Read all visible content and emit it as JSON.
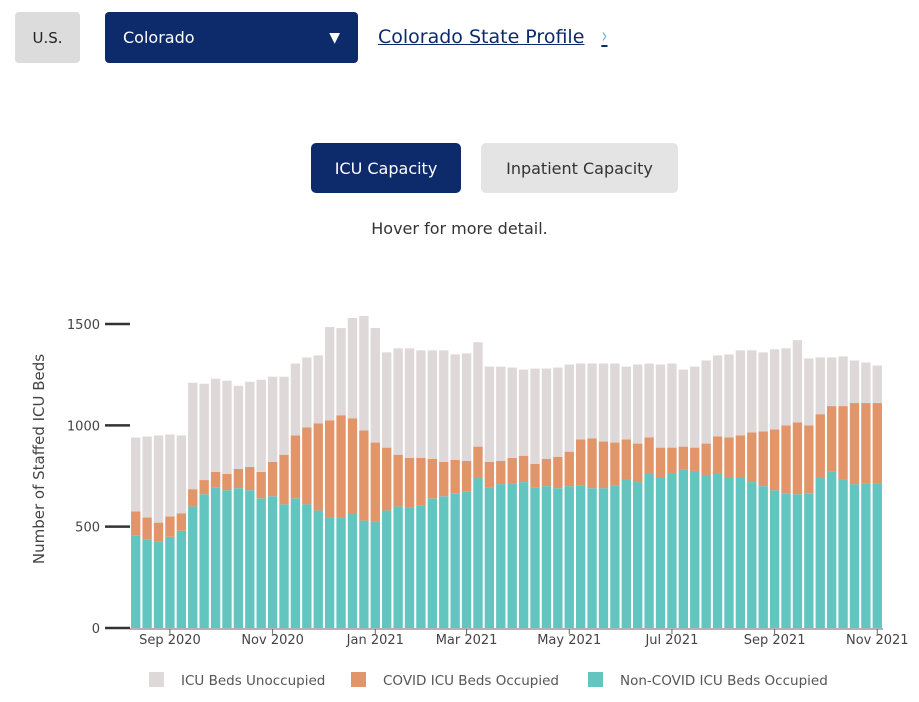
{
  "nav": {
    "us_label": "U.S.",
    "state_selected": "Colorado",
    "dropdown_caret": "▼",
    "profile_link": "Colorado State Profile",
    "profile_chevron": "›"
  },
  "tabs": [
    {
      "label": "ICU Capacity",
      "active": true
    },
    {
      "label": "Inpatient Capacity",
      "active": false
    }
  ],
  "hint": "Hover for more detail.",
  "colors": {
    "primary": "#0d2b6b",
    "unoccupied": "#ded8d8",
    "covid": "#e3956a",
    "noncovid": "#63c5c0"
  },
  "chart_data": {
    "type": "bar",
    "stacked": true,
    "ylabel": "Number of Staffed ICU Beds",
    "ylim": [
      0,
      1500
    ],
    "yticks": [
      0,
      500,
      1000,
      1500
    ],
    "xticks": [
      {
        "label": "Sep 2020",
        "index": 3
      },
      {
        "label": "Nov 2020",
        "index": 12
      },
      {
        "label": "Jan 2021",
        "index": 21
      },
      {
        "label": "Mar 2021",
        "index": 29
      },
      {
        "label": "May 2021",
        "index": 38
      },
      {
        "label": "Jul 2021",
        "index": 47
      },
      {
        "label": "Sep 2021",
        "index": 56
      },
      {
        "label": "Nov 2021",
        "index": 65
      }
    ],
    "legend": [
      "ICU Beds Unoccupied",
      "COVID ICU Beds Occupied",
      "Non-COVID ICU Beds Occupied"
    ],
    "series": [
      {
        "name": "Non-COVID ICU Beds Occupied",
        "color": "#63c5c0",
        "values": [
          455,
          435,
          425,
          450,
          480,
          600,
          660,
          695,
          680,
          690,
          680,
          640,
          650,
          610,
          640,
          610,
          580,
          545,
          545,
          565,
          530,
          525,
          580,
          600,
          595,
          605,
          640,
          650,
          665,
          675,
          740,
          695,
          710,
          715,
          720,
          695,
          700,
          690,
          700,
          705,
          690,
          690,
          705,
          735,
          720,
          760,
          745,
          760,
          780,
          775,
          755,
          765,
          745,
          745,
          720,
          700,
          680,
          665,
          660,
          665,
          740,
          770,
          735,
          710,
          715,
          715
        ]
      },
      {
        "name": "COVID ICU Beds Occupied",
        "color": "#e3956a",
        "values": [
          120,
          110,
          95,
          100,
          85,
          85,
          70,
          75,
          80,
          95,
          115,
          130,
          170,
          245,
          310,
          380,
          430,
          480,
          505,
          470,
          445,
          390,
          310,
          255,
          245,
          235,
          195,
          170,
          165,
          150,
          155,
          125,
          115,
          125,
          130,
          115,
          135,
          155,
          170,
          225,
          245,
          230,
          210,
          195,
          190,
          180,
          145,
          130,
          115,
          115,
          155,
          180,
          195,
          205,
          245,
          270,
          300,
          335,
          355,
          335,
          315,
          325,
          360,
          400,
          395,
          395
        ]
      },
      {
        "name": "ICU Beds Unoccupied",
        "color": "#ded8d8",
        "values": [
          365,
          400,
          430,
          405,
          385,
          525,
          475,
          460,
          460,
          410,
          420,
          455,
          420,
          385,
          355,
          345,
          335,
          460,
          430,
          495,
          565,
          565,
          470,
          525,
          540,
          530,
          535,
          550,
          520,
          530,
          515,
          470,
          465,
          445,
          425,
          470,
          445,
          440,
          430,
          375,
          370,
          385,
          390,
          360,
          390,
          365,
          410,
          415,
          380,
          400,
          410,
          400,
          410,
          420,
          405,
          390,
          395,
          380,
          405,
          330,
          280,
          240,
          245,
          210,
          200,
          185
        ]
      }
    ]
  }
}
